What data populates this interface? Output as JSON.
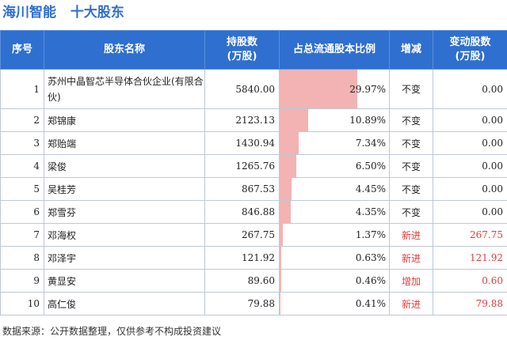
{
  "title": {
    "company": "海川智能",
    "subtitle": "十大股东"
  },
  "columns": [
    "序号",
    "股东名称",
    "持股数\n(万股)",
    "占总流通股本比例",
    "增减",
    "变动股数\n(万股)"
  ],
  "colors": {
    "header_bg": "#2f6fcf",
    "bar": "#f3b3b3",
    "increase_text": "#e23b3b"
  },
  "rows": [
    {
      "idx": "1",
      "name": "苏州中晶智芯半导体合伙企业(有限合伙)",
      "holding": "5840.00",
      "ratio": "29.97%",
      "ratio_value": 29.97,
      "change": "不变",
      "delta": "0.00"
    },
    {
      "idx": "2",
      "name": "郑锦康",
      "holding": "2123.13",
      "ratio": "10.89%",
      "ratio_value": 10.89,
      "change": "不变",
      "delta": "0.00"
    },
    {
      "idx": "3",
      "name": "郑贻端",
      "holding": "1430.94",
      "ratio": "7.34%",
      "ratio_value": 7.34,
      "change": "不变",
      "delta": "0.00"
    },
    {
      "idx": "4",
      "name": "梁俊",
      "holding": "1265.76",
      "ratio": "6.50%",
      "ratio_value": 6.5,
      "change": "不变",
      "delta": "0.00"
    },
    {
      "idx": "5",
      "name": "吴桂芳",
      "holding": "867.53",
      "ratio": "4.45%",
      "ratio_value": 4.45,
      "change": "不变",
      "delta": "0.00"
    },
    {
      "idx": "6",
      "name": "郑雪芬",
      "holding": "846.88",
      "ratio": "4.35%",
      "ratio_value": 4.35,
      "change": "不变",
      "delta": "0.00"
    },
    {
      "idx": "7",
      "name": "邓海权",
      "holding": "267.75",
      "ratio": "1.37%",
      "ratio_value": 1.37,
      "change": "新进",
      "delta": "267.75"
    },
    {
      "idx": "8",
      "name": "邓泽宇",
      "holding": "121.92",
      "ratio": "0.63%",
      "ratio_value": 0.63,
      "change": "新进",
      "delta": "121.92"
    },
    {
      "idx": "9",
      "name": "黄显安",
      "holding": "89.60",
      "ratio": "0.46%",
      "ratio_value": 0.46,
      "change": "增加",
      "delta": "0.60"
    },
    {
      "idx": "10",
      "name": "高仁俊",
      "holding": "79.88",
      "ratio": "0.41%",
      "ratio_value": 0.41,
      "change": "新进",
      "delta": "79.88"
    }
  ],
  "footer": "数据来源：公开数据整理，仅供参考不构成投资建议"
}
